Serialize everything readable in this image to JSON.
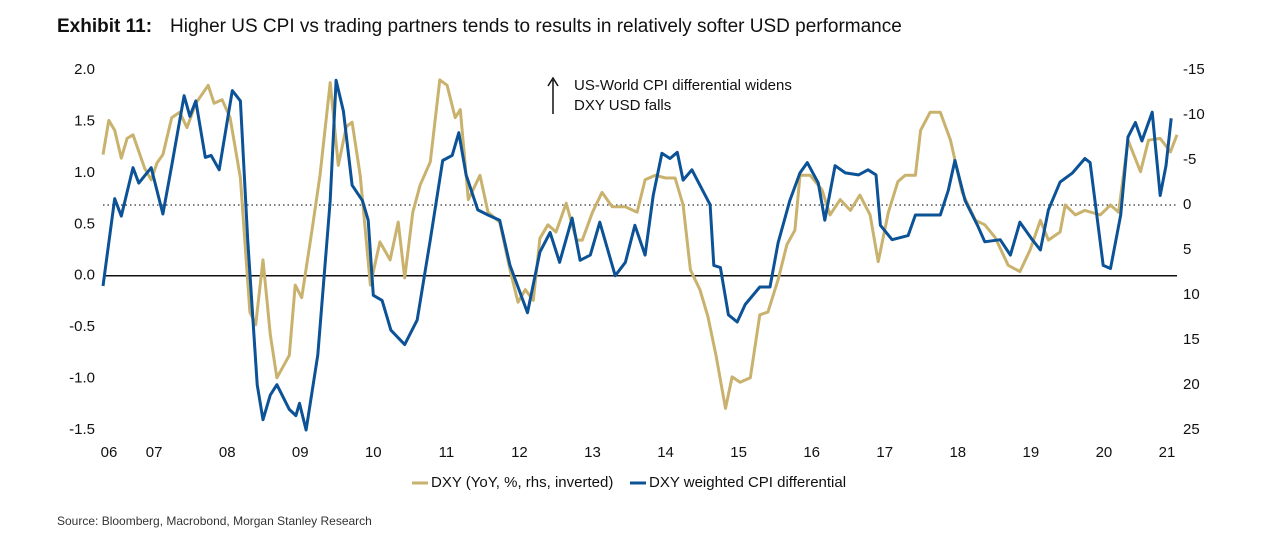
{
  "chart_data": {
    "type": "line",
    "title_label": "Exhibit 11:",
    "title": "Higher US CPI vs trading partners tends to results in relatively softer USD performance",
    "annotation": [
      "US-World CPI differential widens",
      "DXY USD falls"
    ],
    "source": "Source: Bloomberg, Macrobond, Morgan Stanley Research",
    "xlim": [
      2006.3,
      2021.0
    ],
    "xticks": [
      {
        "value": 2006,
        "label": "06"
      },
      {
        "value": 2007,
        "label": "07"
      },
      {
        "value": 2008,
        "label": "08"
      },
      {
        "value": 2009,
        "label": "09"
      },
      {
        "value": 2010,
        "label": "10"
      },
      {
        "value": 2011,
        "label": "11"
      },
      {
        "value": 2012,
        "label": "12"
      },
      {
        "value": 2013,
        "label": "13"
      },
      {
        "value": 2014,
        "label": "14"
      },
      {
        "value": 2015,
        "label": "15"
      },
      {
        "value": 2016,
        "label": "16"
      },
      {
        "value": 2017,
        "label": "17"
      },
      {
        "value": 2018,
        "label": "18"
      },
      {
        "value": 2019,
        "label": "19"
      },
      {
        "value": 2020,
        "label": "20"
      },
      {
        "value": 2021,
        "label": "21"
      }
    ],
    "ylim": [
      -1.5,
      2.0
    ],
    "yticks": [
      {
        "value": 2,
        "label": "2.0"
      },
      1.5,
      {
        "value": 1,
        "label": "1.0"
      },
      0.5,
      {
        "value": 0,
        "label": "0.0"
      },
      -0.5,
      {
        "value": -1,
        "label": "-1.0"
      },
      -1.5
    ],
    "y2lim": [
      -15,
      25
    ],
    "y2_inverted": true,
    "y2ticks": [
      -15,
      -10,
      -5,
      0,
      5,
      10,
      15,
      20,
      25
    ],
    "reference_line": 0,
    "y2_reference_line": 0,
    "legend": "bottom",
    "series": [
      {
        "name": "DXY (YoY, %, rhs, inverted)",
        "color": "#c9b26d",
        "axis": "y2",
        "x": [
          2006.3,
          2006.38,
          2006.46,
          2006.55,
          2006.63,
          2006.71,
          2006.87,
          2006.96,
          2007.04,
          2007.12,
          2007.24,
          2007.35,
          2007.45,
          2007.57,
          2007.74,
          2007.82,
          2007.93,
          2008.04,
          2008.18,
          2008.31,
          2008.39,
          2008.49,
          2008.59,
          2008.68,
          2008.85,
          2008.93,
          2009.02,
          2009.16,
          2009.27,
          2009.41,
          2009.52,
          2009.63,
          2009.71,
          2009.82,
          2009.96,
          2010.09,
          2010.23,
          2010.34,
          2010.43,
          2010.54,
          2010.64,
          2010.78,
          2010.91,
          2011.01,
          2011.12,
          2011.19,
          2011.3,
          2011.46,
          2011.57,
          2011.73,
          2011.87,
          2011.98,
          2012.08,
          2012.19,
          2012.28,
          2012.39,
          2012.5,
          2012.64,
          2012.78,
          2012.86,
          2013.0,
          2013.13,
          2013.27,
          2013.45,
          2013.61,
          2013.72,
          2013.86,
          2014.0,
          2014.13,
          2014.24,
          2014.34,
          2014.47,
          2014.58,
          2014.69,
          2014.82,
          2014.91,
          2015.02,
          2015.16,
          2015.29,
          2015.4,
          2015.54,
          2015.66,
          2015.77,
          2015.84,
          2015.98,
          2016.14,
          2016.25,
          2016.39,
          2016.53,
          2016.66,
          2016.8,
          2016.91,
          2017.05,
          2017.18,
          2017.28,
          2017.42,
          2017.49,
          2017.62,
          2017.76,
          2017.9,
          2018.06,
          2018.24,
          2018.37,
          2018.51,
          2018.69,
          2018.85,
          2018.99,
          2019.13,
          2019.24,
          2019.4,
          2019.47,
          2019.61,
          2019.74,
          2019.95,
          2020.09,
          2020.2,
          2020.33,
          2020.5,
          2020.61,
          2020.77,
          2020.91,
          2021.0
        ],
        "values": [
          -5.6,
          -9.4,
          -8.3,
          -5.2,
          -7.4,
          -7.8,
          -4.1,
          -2.8,
          -4.7,
          -5.6,
          -9.7,
          -10.3,
          -8.6,
          -11.3,
          -13.3,
          -11.3,
          -11.7,
          -9.7,
          -3.0,
          11.9,
          13.3,
          6.1,
          14.4,
          19.2,
          16.7,
          8.9,
          10.3,
          2.8,
          -3.3,
          -13.6,
          -4.4,
          -8.7,
          -9.2,
          -3.3,
          8.9,
          4.1,
          6.1,
          1.9,
          8.1,
          0.8,
          -2.2,
          -4.8,
          -13.9,
          -13.3,
          -9.7,
          -10.6,
          -0.6,
          -3.3,
          0.8,
          1.9,
          7.2,
          10.8,
          9.4,
          10.6,
          3.7,
          2.2,
          3.0,
          -0.2,
          3.9,
          3.9,
          0.8,
          -1.4,
          0.2,
          0.2,
          0.8,
          -2.8,
          -3.3,
          -3.0,
          -3.0,
          0,
          7.2,
          9.4,
          12.4,
          16.7,
          22.6,
          19.1,
          19.7,
          19.2,
          12.2,
          11.9,
          8.3,
          4.4,
          2.8,
          -3.3,
          -3.3,
          -1.7,
          1.1,
          -0.6,
          0.6,
          -1.1,
          1.1,
          6.3,
          0.8,
          -2.6,
          -3.3,
          -3.3,
          -8.3,
          -10.3,
          -10.3,
          -7.2,
          -1.4,
          1.7,
          2.2,
          3.6,
          6.7,
          7.4,
          5.0,
          1.7,
          3.9,
          3.0,
          0,
          1.1,
          0.6,
          1.1,
          0,
          0.8,
          -7.2,
          -3.7,
          -7.2,
          -7.4,
          -5.9,
          -7.8
        ]
      },
      {
        "name": "DXY weighted CPI differential",
        "color": "#0c5296",
        "x": [
          2006.3,
          2006.46,
          2006.55,
          2006.71,
          2006.79,
          2006.96,
          2007.12,
          2007.24,
          2007.41,
          2007.49,
          2007.57,
          2007.7,
          2007.78,
          2007.89,
          2008.07,
          2008.18,
          2008.28,
          2008.41,
          2008.49,
          2008.59,
          2008.68,
          2008.85,
          2008.94,
          2008.99,
          2009.08,
          2009.24,
          2009.41,
          2009.49,
          2009.59,
          2009.71,
          2009.85,
          2009.93,
          2010.0,
          2010.12,
          2010.24,
          2010.43,
          2010.6,
          2010.78,
          2010.95,
          2011.08,
          2011.17,
          2011.27,
          2011.43,
          2011.57,
          2011.73,
          2011.87,
          2012.11,
          2012.28,
          2012.42,
          2012.55,
          2012.72,
          2012.83,
          2012.97,
          2013.1,
          2013.31,
          2013.45,
          2013.58,
          2013.72,
          2013.83,
          2013.95,
          2014.06,
          2014.16,
          2014.24,
          2014.36,
          2014.61,
          2014.66,
          2014.75,
          2014.86,
          2014.98,
          2015.09,
          2015.29,
          2015.43,
          2015.54,
          2015.7,
          2015.84,
          2015.94,
          2016.09,
          2016.18,
          2016.32,
          2016.46,
          2016.64,
          2016.77,
          2016.88,
          2016.94,
          2017.1,
          2017.32,
          2017.42,
          2017.62,
          2017.76,
          2017.87,
          2017.96,
          2018.1,
          2018.27,
          2018.37,
          2018.58,
          2018.72,
          2018.85,
          2019.02,
          2019.13,
          2019.24,
          2019.4,
          2019.57,
          2019.74,
          2019.81,
          2019.99,
          2020.09,
          2020.23,
          2020.33,
          2020.43,
          2020.52,
          2020.66,
          2020.77,
          2020.85,
          2020.92
        ],
        "values": [
          -0.1,
          0.75,
          0.58,
          1.05,
          0.9,
          1.05,
          0.6,
          1.07,
          1.75,
          1.55,
          1.7,
          1.15,
          1.17,
          1.03,
          1.8,
          1.7,
          0.35,
          -1.06,
          -1.4,
          -1.16,
          -1.06,
          -1.3,
          -1.36,
          -1.24,
          -1.5,
          -0.77,
          0.73,
          1.9,
          1.6,
          0.88,
          0.73,
          0.54,
          -0.19,
          -0.24,
          -0.53,
          -0.67,
          -0.43,
          0.35,
          1.12,
          1.17,
          1.39,
          0.98,
          0.64,
          0.59,
          0.54,
          0.1,
          -0.36,
          0.23,
          0.42,
          0.13,
          0.56,
          0.15,
          0.2,
          0.52,
          0.0,
          0.13,
          0.49,
          0.2,
          0.78,
          1.19,
          1.14,
          1.2,
          0.93,
          1.03,
          0.69,
          0.1,
          0.08,
          -0.38,
          -0.45,
          -0.28,
          -0.11,
          -0.11,
          0.32,
          0.73,
          1.0,
          1.1,
          0.9,
          0.54,
          1.07,
          1.0,
          0.98,
          1.03,
          0.98,
          0.49,
          0.35,
          0.39,
          0.59,
          0.59,
          0.59,
          0.83,
          1.12,
          0.73,
          0.49,
          0.33,
          0.35,
          0.2,
          0.52,
          0.35,
          0.25,
          0.64,
          0.91,
          1.0,
          1.14,
          1.1,
          0.1,
          0.07,
          0.59,
          1.35,
          1.49,
          1.31,
          1.59,
          0.78,
          1.07,
          1.53
        ]
      }
    ]
  }
}
